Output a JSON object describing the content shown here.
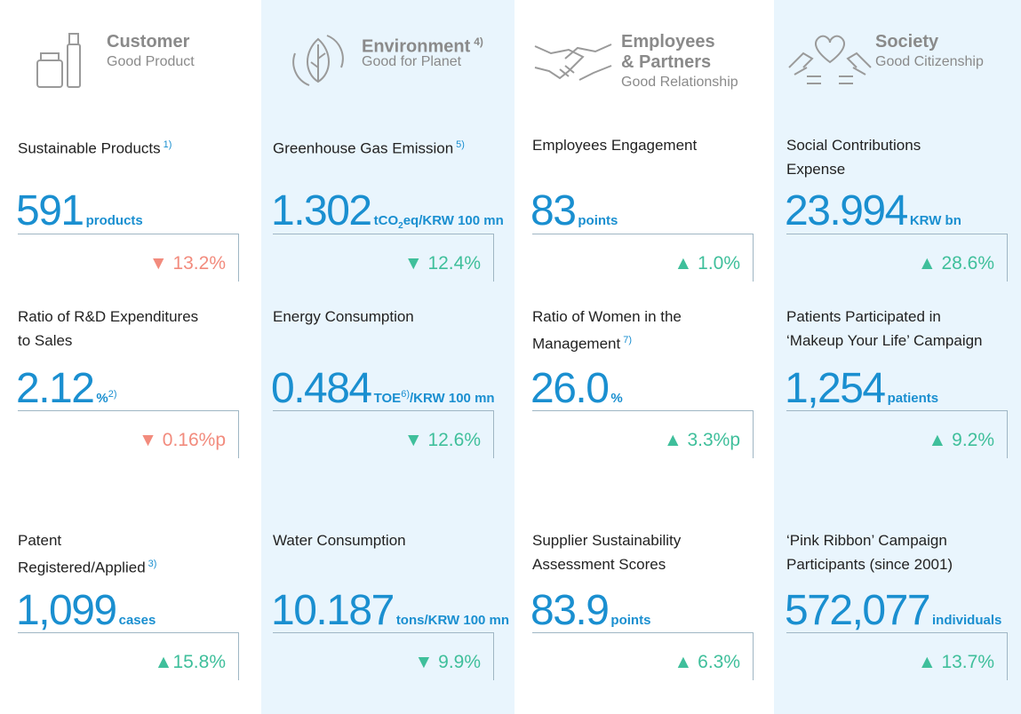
{
  "columns": [
    {
      "title": [
        "Customer"
      ],
      "subtitle": "Good Product",
      "metrics": [
        {
          "label": [
            "Sustainable Products"
          ],
          "note": "1)",
          "value": "591",
          "unit": [
            {
              "text": "products"
            }
          ],
          "change": "▼ 13.2%",
          "color": "#f28b7d"
        },
        {
          "label": [
            "Ratio of R&D Expenditures",
            "to Sales"
          ],
          "value": "2.12",
          "unit": [
            {
              "text": "%"
            },
            {
              "text": "2)",
              "style": "sup"
            }
          ],
          "change": "▼ 0.16%p",
          "color": "#f28b7d"
        },
        {
          "label": [
            "Patent",
            "Registered/Applied"
          ],
          "note": "3)",
          "value": "1,099",
          "unit": [
            {
              "text": "cases"
            }
          ],
          "change": "▲15.8%",
          "color": "#3fbf9b"
        }
      ]
    },
    {
      "title": [
        "Environment"
      ],
      "note": "4)",
      "subtitle": "Good for Planet",
      "background": "#e9f5fd",
      "metrics": [
        {
          "label": [
            "Greenhouse Gas Emission"
          ],
          "note": "5)",
          "value": "1.302",
          "unit": [
            {
              "text": "tCO"
            },
            {
              "text": "2",
              "style": "sub"
            },
            {
              "text": "eq/KRW 100 mn"
            }
          ],
          "change": "▼ 12.4%",
          "color": "#3fbf9b"
        },
        {
          "label": [
            "Energy Consumption"
          ],
          "value": "0.484",
          "unit": [
            {
              "text": "TOE"
            },
            {
              "text": "6)",
              "style": "sup"
            },
            {
              "text": "/KRW 100 mn"
            }
          ],
          "change": "▼ 12.6%",
          "color": "#3fbf9b"
        },
        {
          "label": [
            "Water Consumption"
          ],
          "value": "10.187",
          "unit": [
            {
              "text": "tons/KRW 100 mn"
            }
          ],
          "change": "▼ 9.9%",
          "color": "#3fbf9b"
        }
      ]
    },
    {
      "title": [
        "Employees",
        "& Partners"
      ],
      "subtitle": "Good Relationship",
      "metrics": [
        {
          "label": [
            "Employees Engagement"
          ],
          "value": "83",
          "unit": [
            {
              "text": "points"
            }
          ],
          "change": "▲ 1.0%",
          "color": "#3fbf9b"
        },
        {
          "label": [
            "Ratio of Women in the",
            "Management"
          ],
          "note": "7)",
          "value": "26.0",
          "unit": [
            {
              "text": "%"
            }
          ],
          "change": "▲ 3.3%p",
          "color": "#3fbf9b"
        },
        {
          "label": [
            "Supplier Sustainability",
            "Assessment Scores"
          ],
          "value": "83.9",
          "unit": [
            {
              "text": "points"
            }
          ],
          "change": "▲ 6.3%",
          "color": "#3fbf9b"
        }
      ]
    },
    {
      "title": [
        "Society"
      ],
      "subtitle": "Good Citizenship",
      "background": "#e9f5fd",
      "metrics": [
        {
          "label": [
            "Social Contributions",
            "Expense"
          ],
          "value": "23.994",
          "unit": [
            {
              "text": "KRW bn"
            }
          ],
          "change": "▲ 28.6%",
          "color": "#3fbf9b"
        },
        {
          "label": [
            "Patients Participated in",
            "‘Makeup Your Life’ Campaign"
          ],
          "value": "1,254",
          "unit": [
            {
              "text": "patients"
            }
          ],
          "change": "▲ 9.2%",
          "color": "#3fbf9b"
        },
        {
          "label": [
            "‘Pink Ribbon’ Campaign",
            "Participants (since 2001)"
          ],
          "value": "572,077",
          "unit": [
            {
              "text": "individuals"
            }
          ],
          "change": "▲ 13.7%",
          "color": "#3fbf9b"
        }
      ]
    }
  ]
}
